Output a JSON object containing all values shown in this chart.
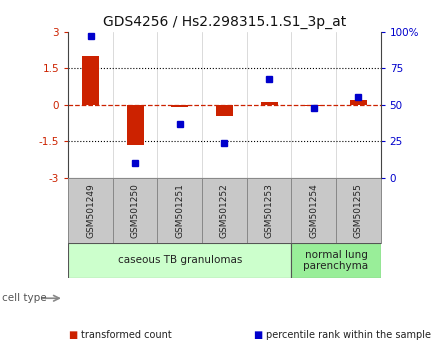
{
  "title": "GDS4256 / Hs2.298315.1.S1_3p_at",
  "samples": [
    "GSM501249",
    "GSM501250",
    "GSM501251",
    "GSM501252",
    "GSM501253",
    "GSM501254",
    "GSM501255"
  ],
  "transformed_count": [
    2.0,
    -1.65,
    -0.08,
    -0.45,
    0.12,
    -0.05,
    0.18
  ],
  "percentile_rank": [
    97,
    10,
    37,
    24,
    68,
    48,
    55
  ],
  "ylim_left": [
    -3,
    3
  ],
  "ylim_right": [
    0,
    100
  ],
  "yticks_left": [
    -3,
    -1.5,
    0,
    1.5,
    3
  ],
  "yticks_left_labels": [
    "-3",
    "-1.5",
    "0",
    "1.5",
    "3"
  ],
  "yticks_right": [
    0,
    25,
    50,
    75,
    100
  ],
  "yticks_right_labels": [
    "0",
    "25",
    "50",
    "75",
    "100%"
  ],
  "bar_color": "#cc2200",
  "dot_color": "#0000cc",
  "hline_color": "#cc2200",
  "dotted_line_color": "#000000",
  "cell_type_groups": [
    {
      "label": "caseous TB granulomas",
      "samples": [
        0,
        1,
        2,
        3,
        4
      ],
      "color": "#ccffcc"
    },
    {
      "label": "normal lung\nparenchyma",
      "samples": [
        5,
        6
      ],
      "color": "#99ee99"
    }
  ],
  "legend_items": [
    {
      "label": "transformed count",
      "color": "#cc2200"
    },
    {
      "label": "percentile rank within the sample",
      "color": "#0000cc"
    }
  ],
  "cell_type_label": "cell type",
  "title_fontsize": 10,
  "tick_fontsize": 7.5,
  "sample_fontsize": 6.5,
  "cell_fontsize": 7.5,
  "legend_fontsize": 7,
  "background_color": "#ffffff",
  "plot_bg_color": "#ffffff",
  "sample_area_color": "#c8c8c8",
  "sample_divider_color": "#888888"
}
